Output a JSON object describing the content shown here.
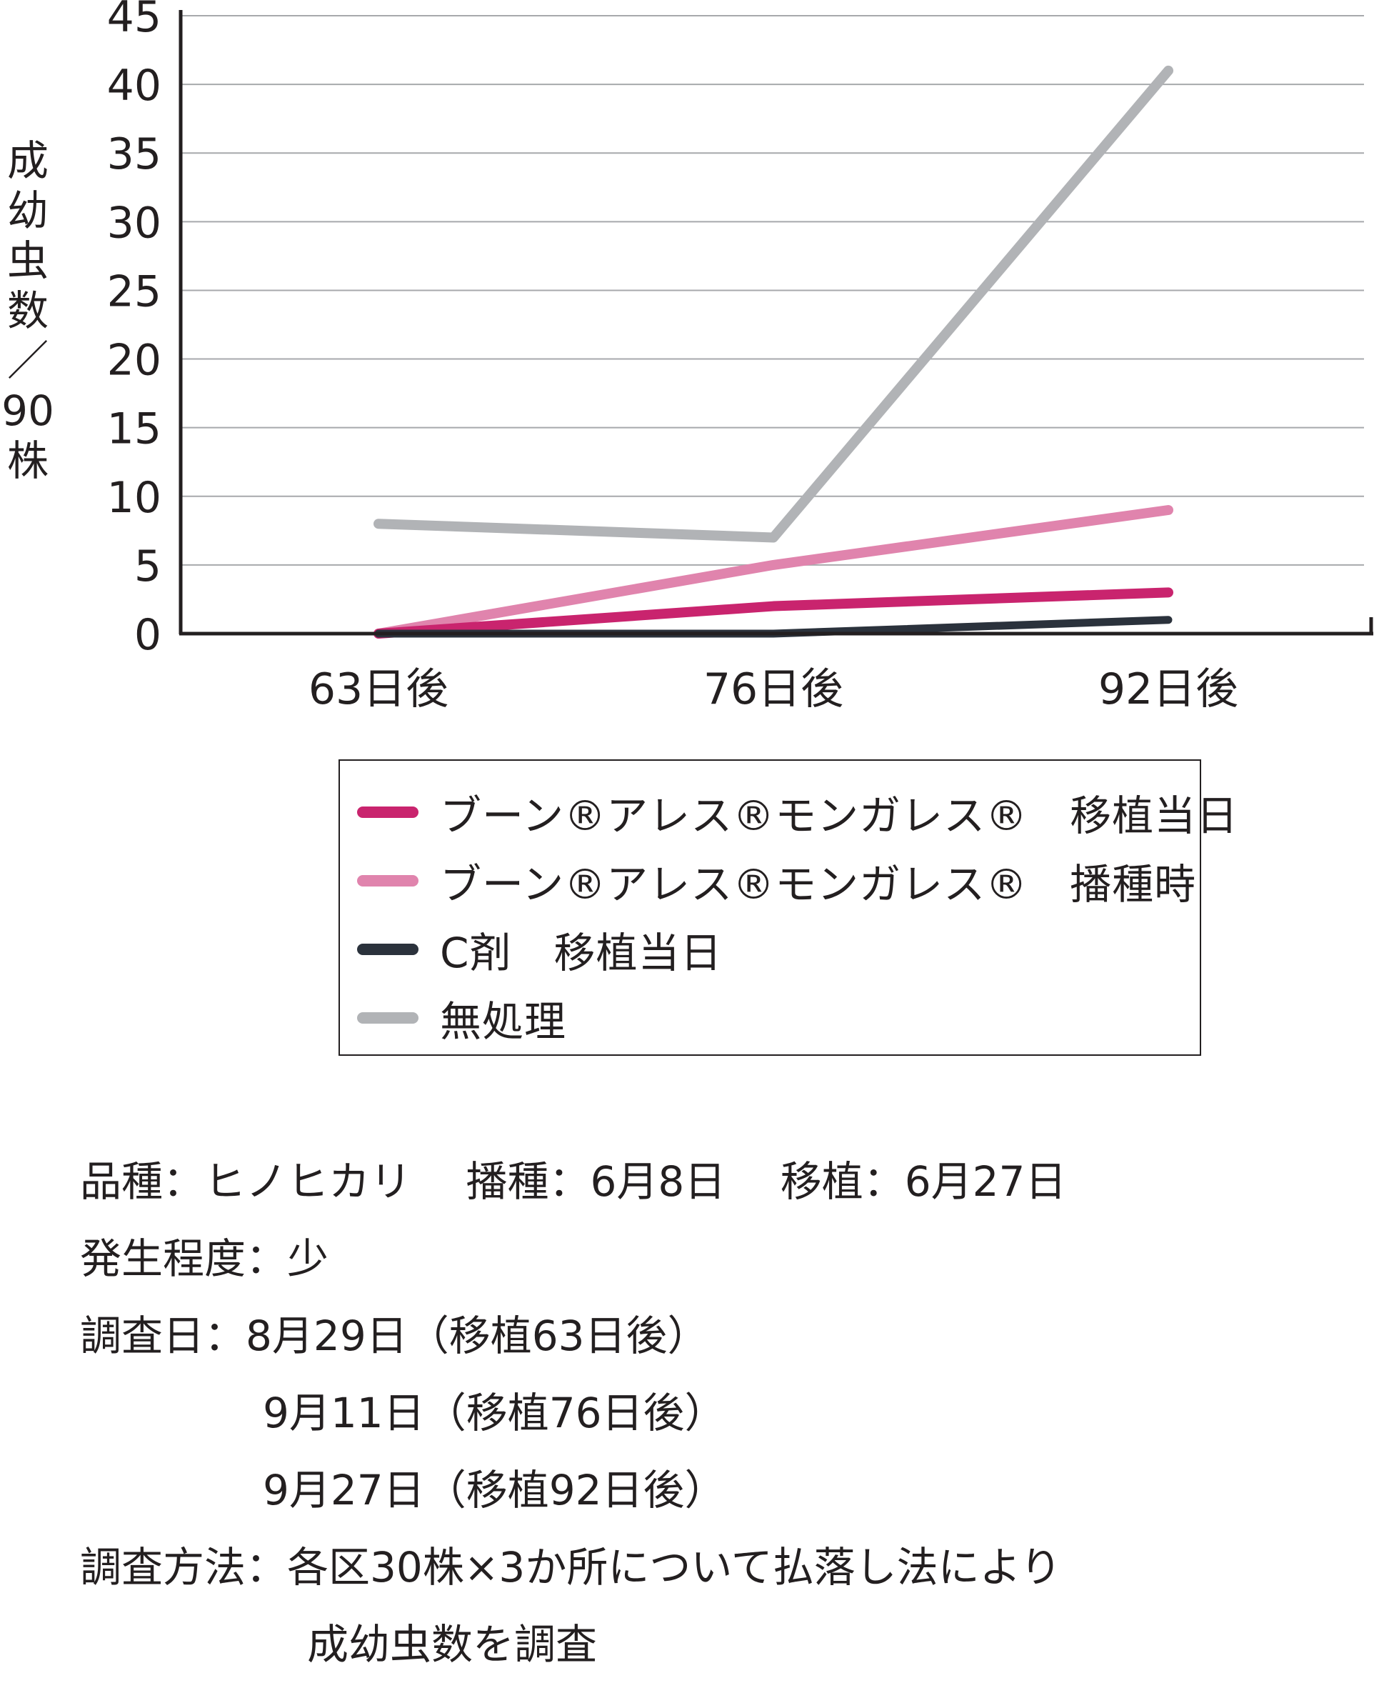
{
  "chart_data": {
    "type": "line",
    "categories": [
      "63日後",
      "76日後",
      "92日後"
    ],
    "ylim": [
      0,
      45
    ],
    "yticks": [
      0,
      5,
      10,
      15,
      20,
      25,
      30,
      35,
      40,
      45
    ],
    "ylabel_chars": [
      "成",
      "幼",
      "虫",
      "数",
      "／",
      "90",
      "株"
    ],
    "grid": true,
    "series": [
      {
        "name": "ブーン®アレス®モンガレス®　移植当日",
        "color": "#c9246e",
        "values": [
          0,
          2,
          3
        ]
      },
      {
        "name": "ブーン®アレス®モンガレス®　播種時",
        "color": "#e084ad",
        "values": [
          0,
          5,
          9
        ]
      },
      {
        "name": "C剤　移植当日",
        "color": "#2b323c",
        "values": [
          0,
          0,
          1
        ]
      },
      {
        "name": "無処理",
        "color": "#b1b3b6",
        "values": [
          8,
          7,
          41
        ]
      }
    ]
  },
  "notes": [
    {
      "key": "品種：",
      "value": "ヒノヒカリ　 播種：6月8日　 移植：6月27日"
    },
    {
      "key": "発生程度：",
      "value": "少"
    },
    {
      "key": "調査日：",
      "value": "8月29日（移植63日後）"
    },
    {
      "key": "",
      "value": "9月11日（移植76日後）"
    },
    {
      "key": "",
      "value": "9月27日（移植92日後）"
    },
    {
      "key": "調査方法：",
      "value": "各区30株×3か所について払落し法により"
    },
    {
      "key": "",
      "value": "成幼虫数を調査"
    }
  ]
}
